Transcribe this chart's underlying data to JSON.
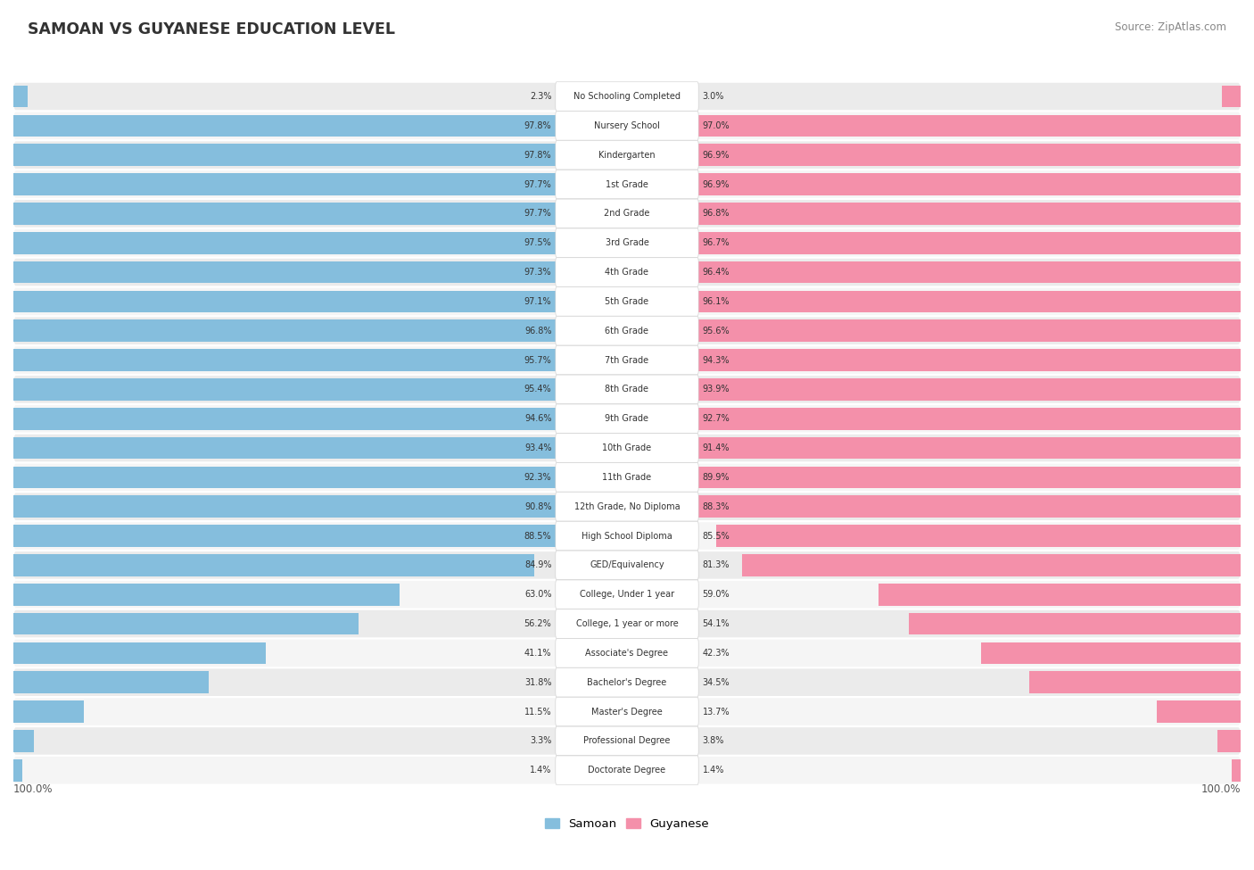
{
  "title": "SAMOAN VS GUYANESE EDUCATION LEVEL",
  "source": "Source: ZipAtlas.com",
  "samoan_color": "#85bedd",
  "guyanese_color": "#f490aa",
  "row_color_odd": "#ebebeb",
  "row_color_even": "#f5f5f5",
  "categories": [
    "No Schooling Completed",
    "Nursery School",
    "Kindergarten",
    "1st Grade",
    "2nd Grade",
    "3rd Grade",
    "4th Grade",
    "5th Grade",
    "6th Grade",
    "7th Grade",
    "8th Grade",
    "9th Grade",
    "10th Grade",
    "11th Grade",
    "12th Grade, No Diploma",
    "High School Diploma",
    "GED/Equivalency",
    "College, Under 1 year",
    "College, 1 year or more",
    "Associate's Degree",
    "Bachelor's Degree",
    "Master's Degree",
    "Professional Degree",
    "Doctorate Degree"
  ],
  "samoan": [
    2.3,
    97.8,
    97.8,
    97.7,
    97.7,
    97.5,
    97.3,
    97.1,
    96.8,
    95.7,
    95.4,
    94.6,
    93.4,
    92.3,
    90.8,
    88.5,
    84.9,
    63.0,
    56.2,
    41.1,
    31.8,
    11.5,
    3.3,
    1.4
  ],
  "guyanese": [
    3.0,
    97.0,
    96.9,
    96.9,
    96.8,
    96.7,
    96.4,
    96.1,
    95.6,
    94.3,
    93.9,
    92.7,
    91.4,
    89.9,
    88.3,
    85.5,
    81.3,
    59.0,
    54.1,
    42.3,
    34.5,
    13.7,
    3.8,
    1.4
  ]
}
